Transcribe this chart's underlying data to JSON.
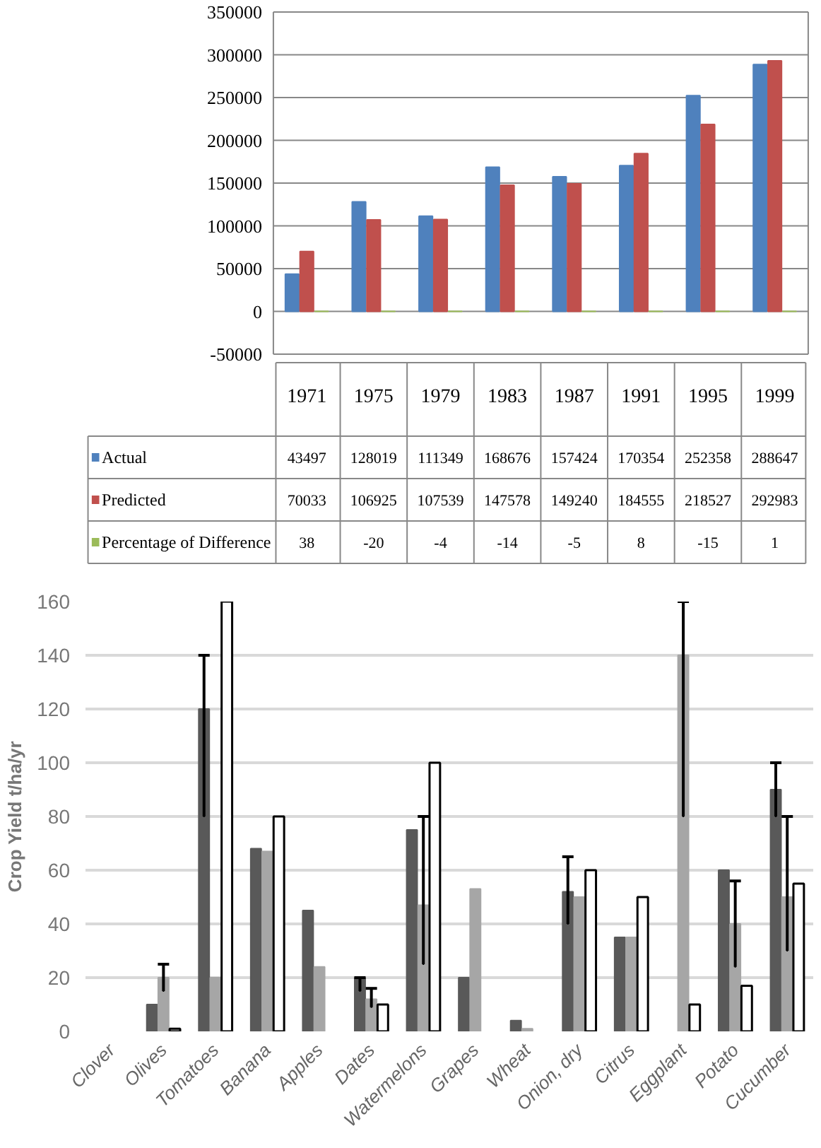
{
  "chart_data": [
    {
      "type": "bar",
      "categories": [
        "1971",
        "1975",
        "1979",
        "1983",
        "1987",
        "1991",
        "1995",
        "1999"
      ],
      "ylim": [
        -50000,
        350000
      ],
      "yticks": [
        -50000,
        0,
        50000,
        100000,
        150000,
        200000,
        250000,
        300000,
        350000
      ],
      "grid": "y",
      "data_labels": true,
      "legend": "bottom left",
      "series": [
        {
          "name": "Actual",
          "color": "#4f81bd",
          "values": [
            43497,
            128019,
            111349,
            168676,
            157424,
            170354,
            252358,
            288647
          ]
        },
        {
          "name": "Predicted",
          "color": "#c0504d",
          "values": [
            70033,
            106925,
            107539,
            147578,
            149240,
            184555,
            218527,
            292983
          ]
        },
        {
          "name": "Percentage of Difference",
          "color": "#9bbb59",
          "values": [
            38,
            -20,
            -4,
            -14,
            -5,
            8,
            -15,
            1
          ]
        }
      ]
    },
    {
      "type": "bar",
      "ylabel": "Crop Yield t/ha/yr",
      "categories": [
        "Clover",
        "Olives",
        "Tomatoes",
        "Banana",
        "Apples",
        "Dates",
        "Watermelons",
        "Grapes",
        "Wheat",
        "Onion, dry",
        "Citrus",
        "Eggplant",
        "Potato",
        "Cucumber"
      ],
      "ylim": [
        0,
        160
      ],
      "yticks": [
        0,
        20,
        40,
        60,
        80,
        100,
        120,
        140,
        160
      ],
      "grid": "y",
      "series": [
        {
          "color": "#595959",
          "values": [
            null,
            10,
            120,
            68,
            45,
            20,
            75,
            20,
            4,
            52,
            35,
            null,
            60,
            90
          ],
          "errors": [
            null,
            null,
            [
              80,
              140
            ],
            null,
            null,
            [
              15,
              20
            ],
            null,
            null,
            null,
            [
              40,
              65
            ],
            null,
            null,
            null,
            [
              80,
              100
            ]
          ]
        },
        {
          "color": "#a6a6a6",
          "values": [
            null,
            20,
            20,
            67,
            24,
            12,
            47,
            53,
            1,
            50,
            35,
            140,
            40,
            50
          ],
          "errors": [
            null,
            [
              15,
              25
            ],
            null,
            null,
            null,
            [
              9,
              16
            ],
            [
              25,
              80
            ],
            null,
            null,
            null,
            null,
            [
              80,
              160
            ],
            [
              24,
              56
            ],
            [
              30,
              80
            ]
          ]
        },
        {
          "color": "#ffffff",
          "values": [
            null,
            1,
            160,
            80,
            null,
            10,
            100,
            null,
            null,
            60,
            50,
            10,
            17,
            55
          ]
        }
      ]
    }
  ]
}
